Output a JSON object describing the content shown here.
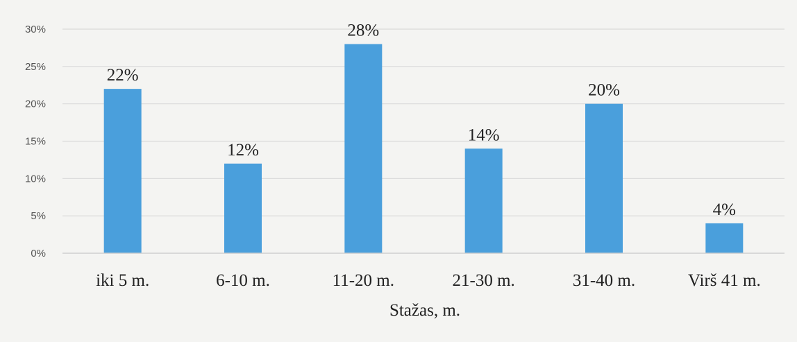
{
  "chart_data": {
    "type": "bar",
    "categories": [
      "iki 5 m.",
      "6-10 m.",
      "11-20 m.",
      "21-30 m.",
      "31-40 m.",
      "Virš 41 m."
    ],
    "values": [
      22,
      12,
      28,
      14,
      20,
      4
    ],
    "data_labels": [
      "22%",
      "12%",
      "28%",
      "14%",
      "20%",
      "4%"
    ],
    "title": "",
    "xlabel": "Stažas, m.",
    "ylabel": "",
    "ylim": [
      0,
      30
    ],
    "yticks": [
      0,
      5,
      10,
      15,
      20,
      25,
      30
    ],
    "ytick_labels": [
      "0%",
      "5%",
      "10%",
      "15%",
      "20%",
      "25%",
      "30%"
    ],
    "grid": true,
    "legend": "none",
    "bar_color": "#4a9fdc",
    "grid_color": "#d9d9d9"
  }
}
